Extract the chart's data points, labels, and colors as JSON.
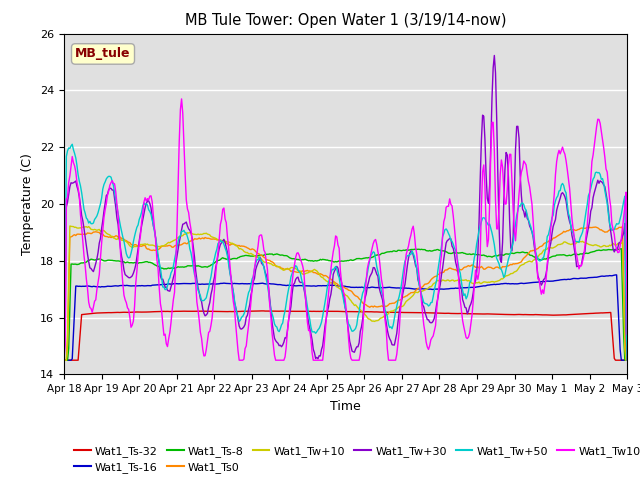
{
  "title": "MB Tule Tower: Open Water 1 (3/19/14-now)",
  "xlabel": "Time",
  "ylabel": "Temperature (C)",
  "ylim": [
    14,
    26
  ],
  "yticks": [
    14,
    16,
    18,
    20,
    22,
    24,
    26
  ],
  "background_color": "#ffffff",
  "plot_bg_color": "#e0e0e0",
  "annotation": {
    "text": "MB_tule",
    "fgcolor": "#880000",
    "bgcolor": "#ffffcc",
    "edgecolor": "#aaaaaa"
  },
  "legend_order": [
    "Wat1_Ts-32",
    "Wat1_Ts-16",
    "Wat1_Ts-8",
    "Wat1_Ts0",
    "Wat1_Tw+10",
    "Wat1_Tw+30",
    "Wat1_Tw+50",
    "Wat1_Tw100"
  ],
  "colors": {
    "Wat1_Ts-32": "#dd0000",
    "Wat1_Ts-16": "#0000cc",
    "Wat1_Ts-8": "#00bb00",
    "Wat1_Ts0": "#ff8800",
    "Wat1_Tw+10": "#cccc00",
    "Wat1_Tw+30": "#8800cc",
    "Wat1_Tw+50": "#00cccc",
    "Wat1_Tw100": "#ff00ff"
  },
  "xtick_labels": [
    "Apr 18",
    "Apr 19",
    "Apr 20",
    "Apr 21",
    "Apr 22",
    "Apr 23",
    "Apr 24",
    "Apr 25",
    "Apr 26",
    "Apr 27",
    "Apr 28",
    "Apr 29",
    "Apr 30",
    "May 1",
    "May 2",
    "May 3"
  ]
}
